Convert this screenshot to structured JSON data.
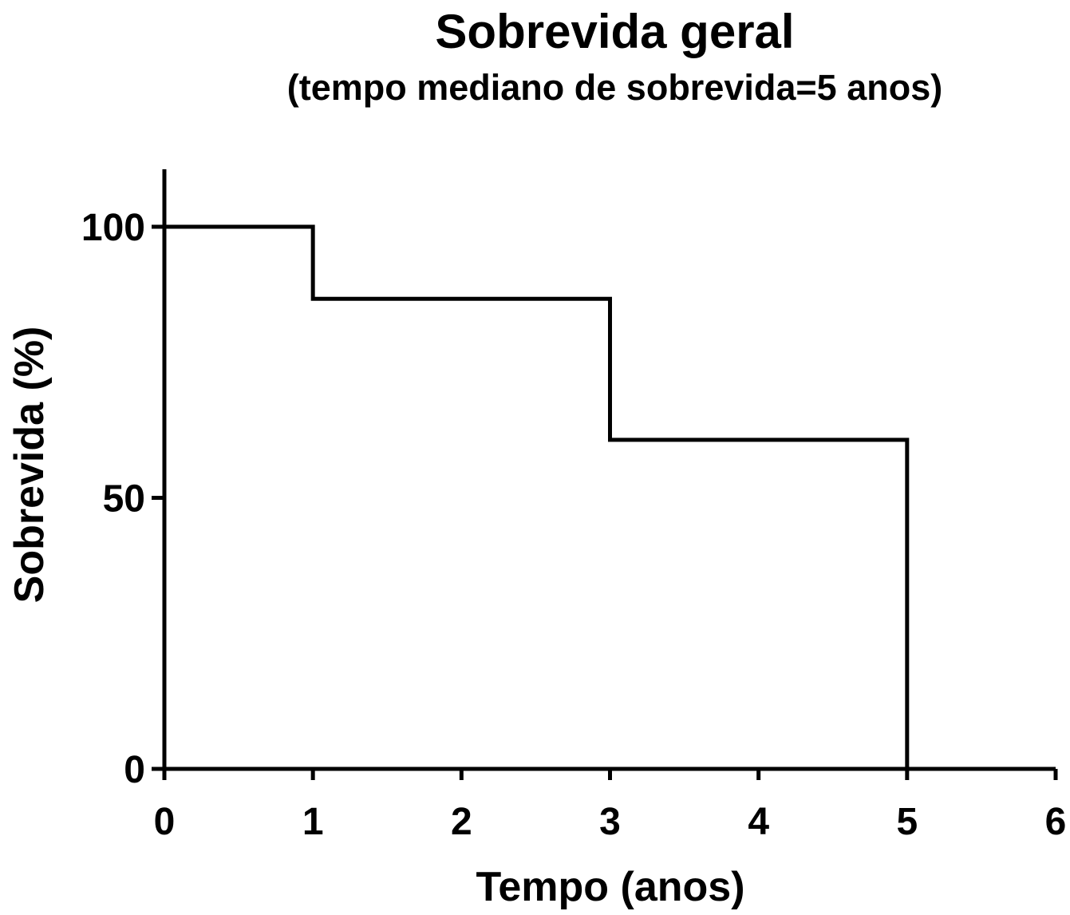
{
  "chart_data": {
    "type": "line",
    "step": true,
    "title": "Sobrevida geral",
    "subtitle": "(tempo mediano de sobrevida=5 anos)",
    "xlabel": "Tempo (anos)",
    "ylabel": "Sobrevida (%)",
    "xlim": [
      0,
      6
    ],
    "ylim": [
      0,
      110
    ],
    "x_ticks": [
      0,
      1,
      2,
      3,
      4,
      5,
      6
    ],
    "x_tick_labels": [
      "0",
      "1",
      "2",
      "3",
      "4",
      "5",
      "6"
    ],
    "y_ticks": [
      0,
      50,
      100
    ],
    "y_tick_labels": [
      "0",
      "50",
      "100"
    ],
    "grid": false,
    "series": [
      {
        "x": [
          0,
          1,
          3,
          5
        ],
        "y": [
          100,
          86.7,
          60.7,
          0
        ],
        "color": "#000000"
      }
    ]
  }
}
